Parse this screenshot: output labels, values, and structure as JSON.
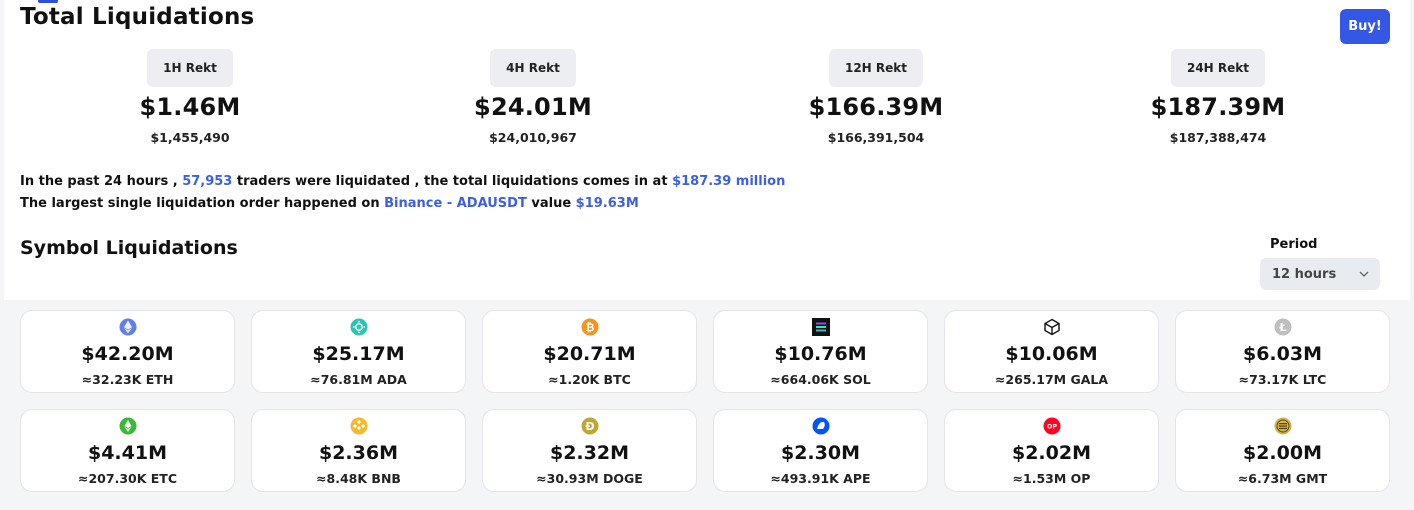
{
  "header": {
    "title": "Total Liquidations",
    "buy_label": "Buy!"
  },
  "stats": [
    {
      "badge": "1H Rekt",
      "value": "$1.46M",
      "exact": "$1,455,490"
    },
    {
      "badge": "4H Rekt",
      "value": "$24.01M",
      "exact": "$24,010,967"
    },
    {
      "badge": "12H Rekt",
      "value": "$166.39M",
      "exact": "$166,391,504"
    },
    {
      "badge": "24H Rekt",
      "value": "$187.39M",
      "exact": "$187,388,474"
    }
  ],
  "summary": {
    "l1_a": "In the past 24 hours , ",
    "l1_traders": "57,953",
    "l1_b": " traders were liquidated , the total liquidations comes in at ",
    "l1_total": "$187.39 million",
    "l2_a": "The largest single liquidation order happened on ",
    "l2_exchange": "Binance - ADAUSDT",
    "l2_b": " value ",
    "l2_value": "$19.63M"
  },
  "symbols_section": {
    "title": "Symbol Liquidations",
    "period_label": "Period",
    "period_value": "12 hours"
  },
  "symbols": [
    {
      "icon": "eth-icon",
      "color": "#627eea",
      "amount": "$42.20M",
      "qty": "≈32.23K ETH"
    },
    {
      "icon": "ada-icon",
      "color": "#2bc5b4",
      "amount": "$25.17M",
      "qty": "≈76.81M ADA"
    },
    {
      "icon": "btc-icon",
      "color": "#f7931a",
      "amount": "$20.71M",
      "qty": "≈1.20K BTC"
    },
    {
      "icon": "sol-icon",
      "color": "#111111",
      "amount": "$10.76M",
      "qty": "≈664.06K SOL"
    },
    {
      "icon": "gala-icon",
      "color": "#111111",
      "amount": "$10.06M",
      "qty": "≈265.17M GALA"
    },
    {
      "icon": "ltc-icon",
      "color": "#bfbfbf",
      "amount": "$6.03M",
      "qty": "≈73.17K LTC"
    },
    {
      "icon": "etc-icon",
      "color": "#3ab83a",
      "amount": "$4.41M",
      "qty": "≈207.30K ETC"
    },
    {
      "icon": "bnb-icon",
      "color": "#f3ba2f",
      "amount": "$2.36M",
      "qty": "≈8.48K BNB"
    },
    {
      "icon": "doge-icon",
      "color": "#c2a633",
      "amount": "$2.32M",
      "qty": "≈30.93M DOGE"
    },
    {
      "icon": "ape-icon",
      "color": "#0054f9",
      "amount": "$2.30M",
      "qty": "≈493.91K APE"
    },
    {
      "icon": "op-icon",
      "color": "#ff0420",
      "amount": "$2.02M",
      "qty": "≈1.53M OP"
    },
    {
      "icon": "gmt-icon",
      "color": "#d4b24c",
      "amount": "$2.00M",
      "qty": "≈6.73M GMT"
    }
  ]
}
